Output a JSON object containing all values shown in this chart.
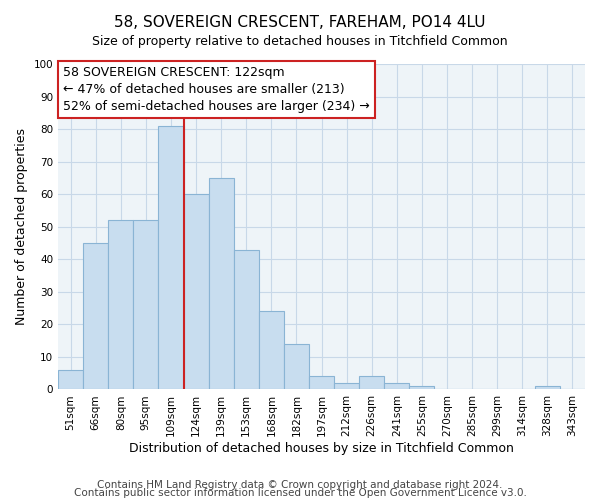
{
  "title": "58, SOVEREIGN CRESCENT, FAREHAM, PO14 4LU",
  "subtitle": "Size of property relative to detached houses in Titchfield Common",
  "xlabel": "Distribution of detached houses by size in Titchfield Common",
  "ylabel": "Number of detached properties",
  "bin_labels": [
    "51sqm",
    "66sqm",
    "80sqm",
    "95sqm",
    "109sqm",
    "124sqm",
    "139sqm",
    "153sqm",
    "168sqm",
    "182sqm",
    "197sqm",
    "212sqm",
    "226sqm",
    "241sqm",
    "255sqm",
    "270sqm",
    "285sqm",
    "299sqm",
    "314sqm",
    "328sqm",
    "343sqm"
  ],
  "bar_heights": [
    6,
    45,
    52,
    52,
    81,
    60,
    65,
    43,
    24,
    14,
    4,
    2,
    4,
    2,
    1,
    0,
    0,
    0,
    0,
    1,
    0
  ],
  "bar_color": "#c8ddef",
  "bar_edge_color": "#8ab4d4",
  "vline_color": "#cc2222",
  "vline_x_index": 4,
  "ylim": [
    0,
    100
  ],
  "annotation_line1": "58 SOVEREIGN CRESCENT: 122sqm",
  "annotation_line2": "← 47% of detached houses are smaller (213)",
  "annotation_line3": "52% of semi-detached houses are larger (234) →",
  "annotation_box_color": "#ffffff",
  "annotation_box_edge_color": "#cc2222",
  "footer1": "Contains HM Land Registry data © Crown copyright and database right 2024.",
  "footer2": "Contains public sector information licensed under the Open Government Licence v3.0.",
  "title_fontsize": 11,
  "subtitle_fontsize": 9,
  "xlabel_fontsize": 9,
  "ylabel_fontsize": 9,
  "tick_fontsize": 7.5,
  "footer_fontsize": 7.5,
  "annotation_fontsize": 9,
  "grid_color": "#c8d8e8",
  "background_color": "#eef4f8"
}
